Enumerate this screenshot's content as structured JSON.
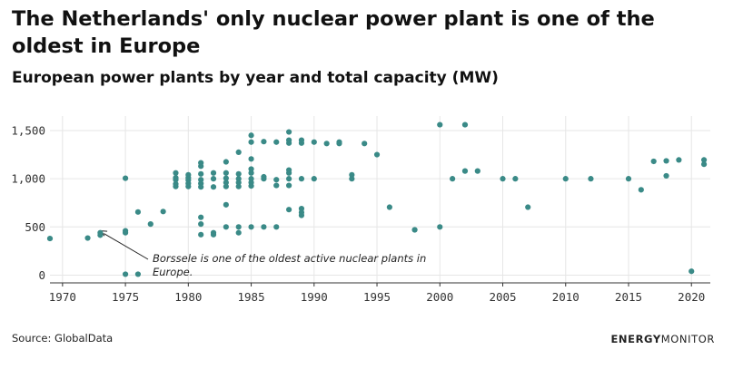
{
  "header": {
    "title": "The Netherlands' only nuclear power plant is one of the oldest in Europe",
    "subtitle": "European power plants by year and total capacity (MW)"
  },
  "footer": {
    "source": "Source: GlobalData",
    "brand_bold": "ENERGY",
    "brand_regular": "MONITOR"
  },
  "colors": {
    "dot": "#3a8a87",
    "grid": "#e6e6e6",
    "axis": "#333333"
  },
  "chart_data": {
    "type": "scatter",
    "title": "European power plants by year and total capacity (MW)",
    "xlabel": "",
    "ylabel": "",
    "xlim": [
      1969,
      2021.5
    ],
    "ylim": [
      -80,
      1650
    ],
    "x_ticks": [
      1970,
      1975,
      1980,
      1985,
      1990,
      1995,
      2000,
      2005,
      2010,
      2015,
      2020
    ],
    "y_ticks": [
      0,
      500,
      1000,
      1500
    ],
    "y_tick_labels": [
      "0",
      "500",
      "1,000",
      "1,500"
    ],
    "grid": true,
    "legend": "none",
    "series": [
      {
        "points": [
          [
            1969,
            380
          ],
          [
            1972,
            385
          ],
          [
            1973,
            415
          ],
          [
            1973,
            440
          ],
          [
            1975,
            10
          ],
          [
            1975,
            440
          ],
          [
            1975,
            460
          ],
          [
            1975,
            1005
          ],
          [
            1976,
            10
          ],
          [
            1976,
            655
          ],
          [
            1977,
            530
          ],
          [
            1978,
            660
          ],
          [
            1979,
            920
          ],
          [
            1979,
            945
          ],
          [
            1979,
            990
          ],
          [
            1979,
            1010
          ],
          [
            1979,
            1060
          ],
          [
            1980,
            920
          ],
          [
            1980,
            950
          ],
          [
            1980,
            985
          ],
          [
            1980,
            1010
          ],
          [
            1980,
            1040
          ],
          [
            1981,
            420
          ],
          [
            1981,
            530
          ],
          [
            1981,
            600
          ],
          [
            1981,
            915
          ],
          [
            1981,
            950
          ],
          [
            1981,
            990
          ],
          [
            1981,
            1050
          ],
          [
            1981,
            1130
          ],
          [
            1981,
            1165
          ],
          [
            1982,
            420
          ],
          [
            1982,
            440
          ],
          [
            1982,
            915
          ],
          [
            1982,
            1000
          ],
          [
            1982,
            1060
          ],
          [
            1983,
            500
          ],
          [
            1983,
            730
          ],
          [
            1983,
            920
          ],
          [
            1983,
            960
          ],
          [
            1983,
            1005
          ],
          [
            1983,
            1060
          ],
          [
            1983,
            1175
          ],
          [
            1984,
            440
          ],
          [
            1984,
            500
          ],
          [
            1984,
            920
          ],
          [
            1984,
            960
          ],
          [
            1984,
            1000
          ],
          [
            1984,
            1050
          ],
          [
            1984,
            1275
          ],
          [
            1985,
            500
          ],
          [
            1985,
            925
          ],
          [
            1985,
            960
          ],
          [
            1985,
            1000
          ],
          [
            1985,
            1060
          ],
          [
            1985,
            1100
          ],
          [
            1985,
            1205
          ],
          [
            1985,
            1380
          ],
          [
            1985,
            1450
          ],
          [
            1986,
            500
          ],
          [
            1986,
            1000
          ],
          [
            1986,
            1020
          ],
          [
            1986,
            1385
          ],
          [
            1987,
            500
          ],
          [
            1987,
            930
          ],
          [
            1987,
            990
          ],
          [
            1987,
            1380
          ],
          [
            1988,
            680
          ],
          [
            1988,
            930
          ],
          [
            1988,
            1000
          ],
          [
            1988,
            1060
          ],
          [
            1988,
            1090
          ],
          [
            1988,
            1370
          ],
          [
            1988,
            1400
          ],
          [
            1988,
            1485
          ],
          [
            1989,
            620
          ],
          [
            1989,
            650
          ],
          [
            1989,
            690
          ],
          [
            1989,
            1000
          ],
          [
            1989,
            1370
          ],
          [
            1989,
            1400
          ],
          [
            1990,
            1000
          ],
          [
            1990,
            1380
          ],
          [
            1991,
            1365
          ],
          [
            1992,
            1365
          ],
          [
            1992,
            1380
          ],
          [
            1993,
            1000
          ],
          [
            1993,
            1040
          ],
          [
            1994,
            1365
          ],
          [
            1995,
            1250
          ],
          [
            1996,
            705
          ],
          [
            1998,
            470
          ],
          [
            2000,
            500
          ],
          [
            2000,
            1560
          ],
          [
            2001,
            1000
          ],
          [
            2002,
            1080
          ],
          [
            2002,
            1560
          ],
          [
            2003,
            1080
          ],
          [
            2005,
            1000
          ],
          [
            2006,
            1000
          ],
          [
            2007,
            705
          ],
          [
            2010,
            1000
          ],
          [
            2012,
            1000
          ],
          [
            2015,
            1000
          ],
          [
            2016,
            885
          ],
          [
            2017,
            1180
          ],
          [
            2018,
            1030
          ],
          [
            2018,
            1185
          ],
          [
            2019,
            1195
          ],
          [
            2020,
            40
          ],
          [
            2021,
            1150
          ],
          [
            2021,
            1195
          ]
        ]
      }
    ],
    "annotations": [
      {
        "lines": [
          "Borssele is one of the oldest active nuclear plants in",
          "Europe."
        ],
        "target": [
          1973,
          460
        ]
      }
    ]
  }
}
